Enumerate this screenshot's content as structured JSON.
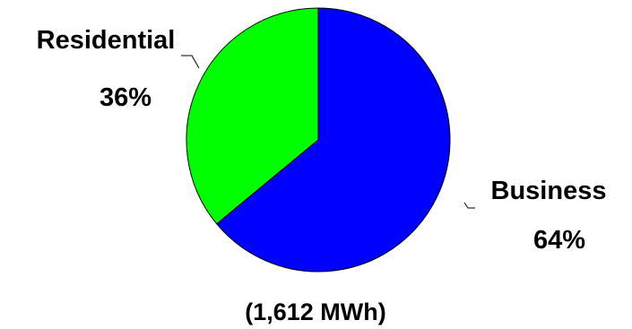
{
  "chart_data": {
    "type": "pie",
    "categories": [
      "Business",
      "Residential"
    ],
    "values": [
      64,
      36
    ],
    "value_labels": [
      "64%",
      "36%"
    ],
    "colors": [
      "#0000ff",
      "#00ff00"
    ],
    "annotation": "(1,612 MWh)"
  }
}
